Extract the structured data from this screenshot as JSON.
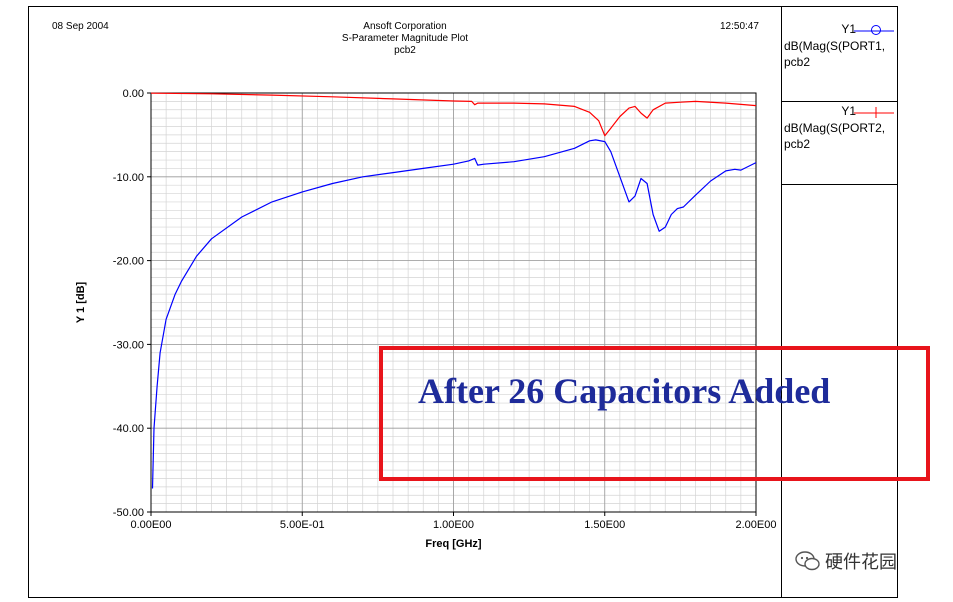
{
  "header": {
    "date": "08 Sep 2004",
    "time": "12:50:47",
    "company": "Ansoft Corporation",
    "plot_title": "S-Parameter Magnitude Plot",
    "design": "pcb2"
  },
  "legend": [
    {
      "name": "Y1",
      "expr": [
        "dB(Mag(S(PORT1,",
        "pcb2"
      ],
      "color": "#0000ff",
      "marker": "circle"
    },
    {
      "name": "Y1",
      "expr": [
        "dB(Mag(S(PORT2,",
        "pcb2"
      ],
      "color": "#ff0000",
      "marker": "plus"
    }
  ],
  "annotation": {
    "text": "After 26 Capacitors Added",
    "box_color": "#e8141b",
    "text_color": "#1e2b9a"
  },
  "watermark": {
    "text": "硬件花园"
  },
  "chart_data": {
    "type": "line",
    "xlabel": "Freq [GHz]",
    "ylabel": "Y 1  [dB]",
    "xlim": [
      0,
      2.0
    ],
    "ylim": [
      -50,
      0
    ],
    "grid": true,
    "x_ticks": [
      {
        "v": 0,
        "label": "0.00E00"
      },
      {
        "v": 0.5,
        "label": "5.00E-01"
      },
      {
        "v": 1.0,
        "label": "1.00E00"
      },
      {
        "v": 1.5,
        "label": "1.50E00"
      },
      {
        "v": 2.0,
        "label": "2.00E00"
      }
    ],
    "y_ticks": [
      {
        "v": 0,
        "label": "0.00"
      },
      {
        "v": -10,
        "label": "-10.00"
      },
      {
        "v": -20,
        "label": "-20.00"
      },
      {
        "v": -30,
        "label": "-30.00"
      },
      {
        "v": -40,
        "label": "-40.00"
      },
      {
        "v": -50,
        "label": "-50.00"
      }
    ],
    "series": [
      {
        "name": "dB(Mag(S(PORT1,pcb2",
        "color": "#0000ff",
        "points": [
          [
            0.005,
            -47.2
          ],
          [
            0.01,
            -40
          ],
          [
            0.02,
            -35
          ],
          [
            0.03,
            -31
          ],
          [
            0.05,
            -27
          ],
          [
            0.08,
            -24
          ],
          [
            0.1,
            -22.5
          ],
          [
            0.15,
            -19.5
          ],
          [
            0.2,
            -17.4
          ],
          [
            0.3,
            -14.8
          ],
          [
            0.4,
            -13
          ],
          [
            0.5,
            -11.8
          ],
          [
            0.6,
            -10.8
          ],
          [
            0.7,
            -10
          ],
          [
            0.8,
            -9.5
          ],
          [
            0.9,
            -9
          ],
          [
            1.0,
            -8.5
          ],
          [
            1.05,
            -8.1
          ],
          [
            1.07,
            -7.8
          ],
          [
            1.08,
            -8.6
          ],
          [
            1.1,
            -8.5
          ],
          [
            1.2,
            -8.2
          ],
          [
            1.3,
            -7.6
          ],
          [
            1.4,
            -6.6
          ],
          [
            1.45,
            -5.7
          ],
          [
            1.47,
            -5.6
          ],
          [
            1.5,
            -5.8
          ],
          [
            1.52,
            -7
          ],
          [
            1.55,
            -10
          ],
          [
            1.58,
            -13
          ],
          [
            1.6,
            -12.3
          ],
          [
            1.62,
            -10.2
          ],
          [
            1.64,
            -10.8
          ],
          [
            1.66,
            -14.5
          ],
          [
            1.68,
            -16.5
          ],
          [
            1.7,
            -16
          ],
          [
            1.72,
            -14.5
          ],
          [
            1.74,
            -13.8
          ],
          [
            1.76,
            -13.6
          ],
          [
            1.8,
            -12.2
          ],
          [
            1.85,
            -10.5
          ],
          [
            1.9,
            -9.3
          ],
          [
            1.93,
            -9.1
          ],
          [
            1.95,
            -9.2
          ],
          [
            2.0,
            -8.3
          ]
        ]
      },
      {
        "name": "dB(Mag(S(PORT2,pcb2",
        "color": "#ff0000",
        "points": [
          [
            0,
            -0.02
          ],
          [
            0.2,
            -0.1
          ],
          [
            0.4,
            -0.25
          ],
          [
            0.6,
            -0.45
          ],
          [
            0.8,
            -0.7
          ],
          [
            1.0,
            -0.95
          ],
          [
            1.06,
            -1.0
          ],
          [
            1.07,
            -1.4
          ],
          [
            1.08,
            -1.2
          ],
          [
            1.2,
            -1.2
          ],
          [
            1.3,
            -1.3
          ],
          [
            1.4,
            -1.6
          ],
          [
            1.45,
            -2.3
          ],
          [
            1.48,
            -3.3
          ],
          [
            1.5,
            -5.1
          ],
          [
            1.52,
            -4.2
          ],
          [
            1.55,
            -2.8
          ],
          [
            1.58,
            -1.8
          ],
          [
            1.6,
            -1.6
          ],
          [
            1.62,
            -2.4
          ],
          [
            1.64,
            -3.0
          ],
          [
            1.66,
            -2.0
          ],
          [
            1.7,
            -1.2
          ],
          [
            1.75,
            -1.1
          ],
          [
            1.8,
            -1.0
          ],
          [
            1.9,
            -1.2
          ],
          [
            2.0,
            -1.5
          ]
        ]
      }
    ]
  }
}
